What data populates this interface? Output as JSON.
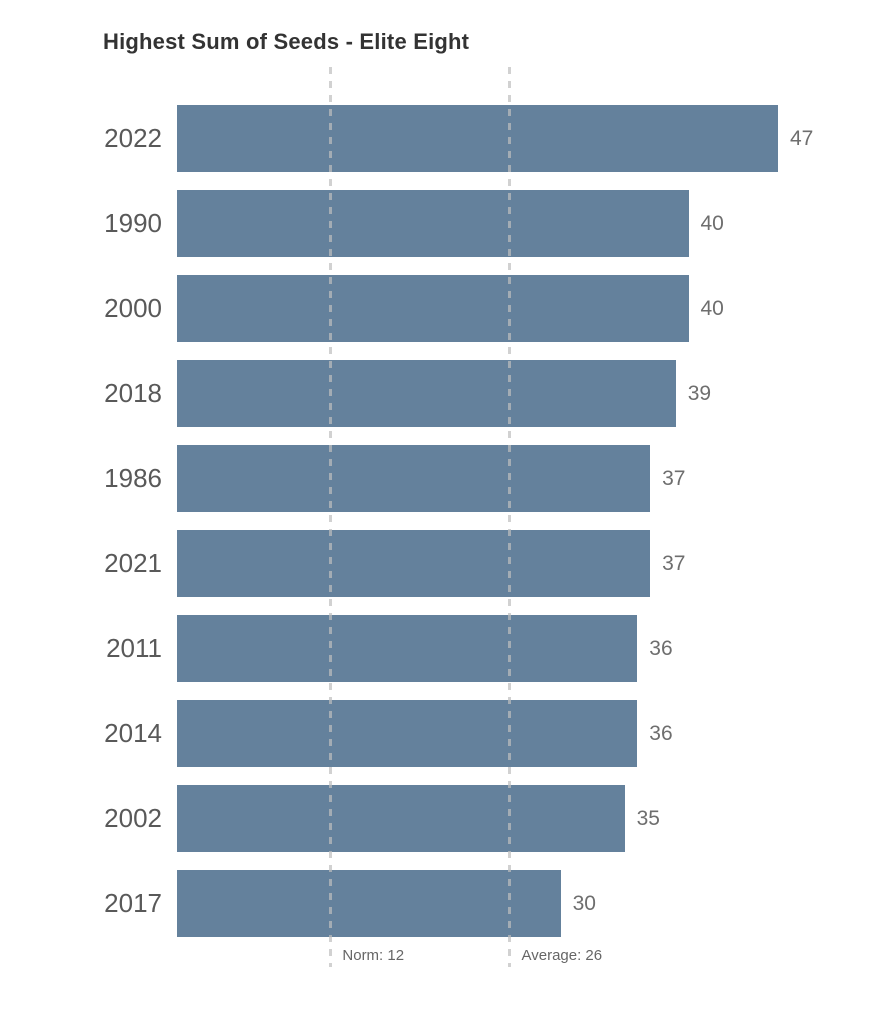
{
  "title": "Highest Sum of Seeds - Elite Eight",
  "chart_data": {
    "type": "bar",
    "orientation": "horizontal",
    "title": "Highest Sum of Seeds - Elite Eight",
    "xlabel": "",
    "ylabel": "",
    "categories": [
      "2022",
      "1990",
      "2000",
      "2018",
      "1986",
      "2021",
      "2011",
      "2014",
      "2002",
      "2017"
    ],
    "values": [
      47,
      40,
      40,
      39,
      37,
      37,
      36,
      36,
      35,
      30
    ],
    "xlim": [
      0,
      47
    ],
    "grid": false,
    "data_labels": true,
    "legend": "none",
    "sort": "descending",
    "reference_lines": [
      {
        "label": "Norm: 12",
        "value": 12
      },
      {
        "label": "Average: 26",
        "value": 26
      }
    ],
    "colors": {
      "bar": "#64819C",
      "reference_line": "#C7C7C7",
      "category_label": "#595959",
      "value_label": "#6E6E6E",
      "title": "#333333",
      "reference_label": "#666666",
      "background": "#FFFFFF"
    }
  }
}
